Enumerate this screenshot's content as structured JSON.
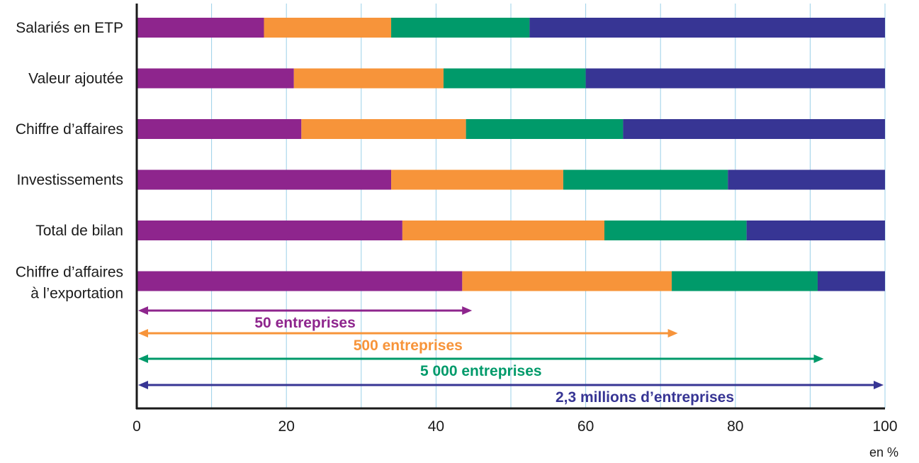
{
  "chart_data": {
    "type": "bar",
    "orientation": "horizontal",
    "stacked": true,
    "categories": [
      "Salariés en ETP",
      "Valeur ajoutée",
      "Chiffre d’affaires",
      "Investissements",
      "Total de bilan",
      "Chiffre d’affaires à l’exportation"
    ],
    "series": [
      {
        "color": "#8e258d",
        "values": [
          17,
          21,
          22,
          34,
          35.5,
          43.5
        ]
      },
      {
        "color": "#f7943a",
        "values": [
          17,
          20,
          22,
          23,
          27,
          28
        ]
      },
      {
        "color": "#009a6a",
        "values": [
          18.5,
          19,
          21,
          22,
          19,
          19.5
        ]
      },
      {
        "color": "#373594",
        "values": [
          47.5,
          40,
          35,
          21,
          18.5,
          9
        ]
      }
    ],
    "cumulative_markers": [
      {
        "label": "50 entreprises",
        "value": 45,
        "color": "#8e258d"
      },
      {
        "label": "500 entreprises",
        "value": 72.5,
        "color": "#f7943a"
      },
      {
        "label": "5 000 entreprises",
        "value": 92,
        "color": "#009a6a"
      },
      {
        "label": "2,3 millions d’entreprises",
        "value": 100,
        "color": "#373594"
      }
    ],
    "x_ticks": [
      "0",
      "20",
      "40",
      "60",
      "80",
      "100"
    ],
    "xlim": [
      0,
      100
    ],
    "x_unit": "en %",
    "grid": {
      "vertical": true,
      "step": 10,
      "color": "#9bd0e8"
    }
  }
}
